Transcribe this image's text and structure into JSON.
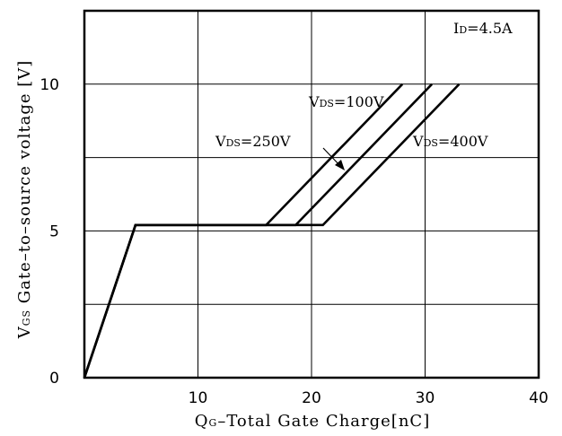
{
  "chart_data": {
    "type": "line",
    "title": "",
    "xlabel": {
      "main": "Q",
      "sub": "G",
      "rest": "–Total Gate Charge[nC]"
    },
    "ylabel": {
      "main": "V",
      "sub": "GS",
      "rest": " Gate–to–source voltage [V]"
    },
    "xlim": [
      0,
      40
    ],
    "ylim": [
      0,
      12.5
    ],
    "x_ticks": [
      10,
      20,
      30,
      40
    ],
    "x_tick_labels": [
      "10",
      "20",
      "30",
      "40"
    ],
    "y_ticks": [
      0,
      5,
      10
    ],
    "y_tick_labels": [
      "0",
      "5",
      "10"
    ],
    "grid": true,
    "legend": "none",
    "series": [
      {
        "name": "VDS=100V",
        "points": [
          [
            0,
            0
          ],
          [
            4.5,
            5.2
          ],
          [
            16,
            5.2
          ],
          [
            28,
            10
          ]
        ]
      },
      {
        "name": "VDS=250V",
        "points": [
          [
            0,
            0
          ],
          [
            4.5,
            5.2
          ],
          [
            18.6,
            5.2
          ],
          [
            30.6,
            10
          ]
        ]
      },
      {
        "name": "VDS=400V",
        "points": [
          [
            0,
            0
          ],
          [
            4.5,
            5.2
          ],
          [
            21,
            5.2
          ],
          [
            33,
            10
          ]
        ]
      }
    ],
    "annotations": {
      "id": {
        "main": "I",
        "sub": "D",
        "rest": "=4.5A"
      },
      "vds100": {
        "main": "V",
        "sub": "DS",
        "rest": "=100V"
      },
      "vds250": {
        "main": "V",
        "sub": "DS",
        "rest": "=250V"
      },
      "vds400": {
        "main": "V",
        "sub": "DS",
        "rest": "=400V"
      }
    },
    "colors": {
      "line": "#000000",
      "grid": "#000000",
      "background": "#ffffff"
    }
  }
}
